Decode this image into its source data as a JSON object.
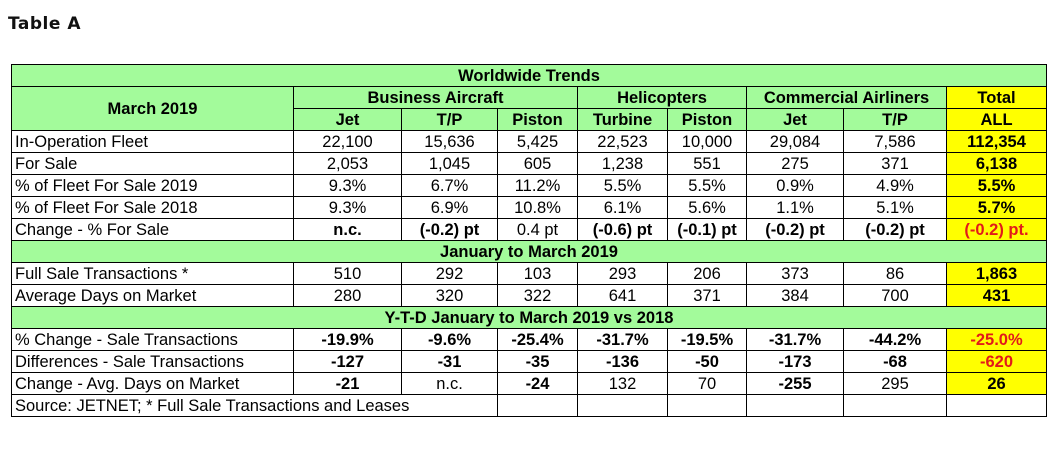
{
  "caption": "Table A",
  "title": "Worldwide Trends",
  "period_label": "March 2019",
  "groups": {
    "business": "Business Aircraft",
    "helicopters": "Helicopters",
    "commercial": "Commercial Airliners",
    "total": "Total"
  },
  "subheads": [
    "Jet",
    "T/P",
    "Piston",
    "Turbine",
    "Piston",
    "Jet",
    "T/P",
    "ALL"
  ],
  "section1": [
    {
      "label": "In-Operation Fleet",
      "values": [
        "22,100",
        "15,636",
        "5,425",
        "22,523",
        "10,000",
        "29,084",
        "7,586"
      ],
      "total": "112,354"
    },
    {
      "label": "For Sale",
      "values": [
        "2,053",
        "1,045",
        "605",
        "1,238",
        "551",
        "275",
        "371"
      ],
      "total": "6,138"
    },
    {
      "label": "% of Fleet For Sale 2019",
      "values": [
        "9.3%",
        "6.7%",
        "11.2%",
        "5.5%",
        "5.5%",
        "0.9%",
        "4.9%"
      ],
      "total": "5.5%"
    },
    {
      "label": "% of Fleet For Sale 2018",
      "values": [
        "9.3%",
        "6.9%",
        "10.8%",
        "6.1%",
        "5.6%",
        "1.1%",
        "5.1%"
      ],
      "total": "5.7%"
    },
    {
      "label": "Change - % For Sale",
      "values": [
        "n.c.",
        "(-0.2) pt",
        "0.4 pt",
        "(-0.6) pt",
        "(-0.1) pt",
        "(-0.2) pt",
        "(-0.2) pt"
      ],
      "total": "(-0.2) pt."
    }
  ],
  "section2_title": "January to March 2019",
  "section2": [
    {
      "label": "Full Sale Transactions *",
      "values": [
        "510",
        "292",
        "103",
        "293",
        "206",
        "373",
        "86"
      ],
      "total": "1,863"
    },
    {
      "label": "Average Days on Market",
      "values": [
        "280",
        "320",
        "322",
        "641",
        "371",
        "384",
        "700"
      ],
      "total": "431"
    }
  ],
  "section3_title": "Y-T-D January to March 2019 vs 2018",
  "section3": [
    {
      "label": "% Change  - Sale Transactions",
      "values": [
        "-19.9%",
        "-9.6%",
        "-25.4%",
        "-31.7%",
        "-19.5%",
        "-31.7%",
        "-44.2%"
      ],
      "total": "-25.0%"
    },
    {
      "label": "Differences - Sale Transactions",
      "values": [
        "-127",
        "-31",
        "-35",
        "-136",
        "-50",
        "-173",
        "-68"
      ],
      "total": "-620"
    },
    {
      "label": "Change -  Avg. Days on Market",
      "values": [
        "-21",
        "n.c.",
        "-24",
        "132",
        "70",
        "-255",
        "295"
      ],
      "total": "26"
    }
  ],
  "source": "Source: JETNET; * Full Sale Transactions and Leases",
  "colors": {
    "header_green": "#a3fb9b",
    "total_yellow": "#ffff00",
    "negative_red": "#e21a1a"
  }
}
